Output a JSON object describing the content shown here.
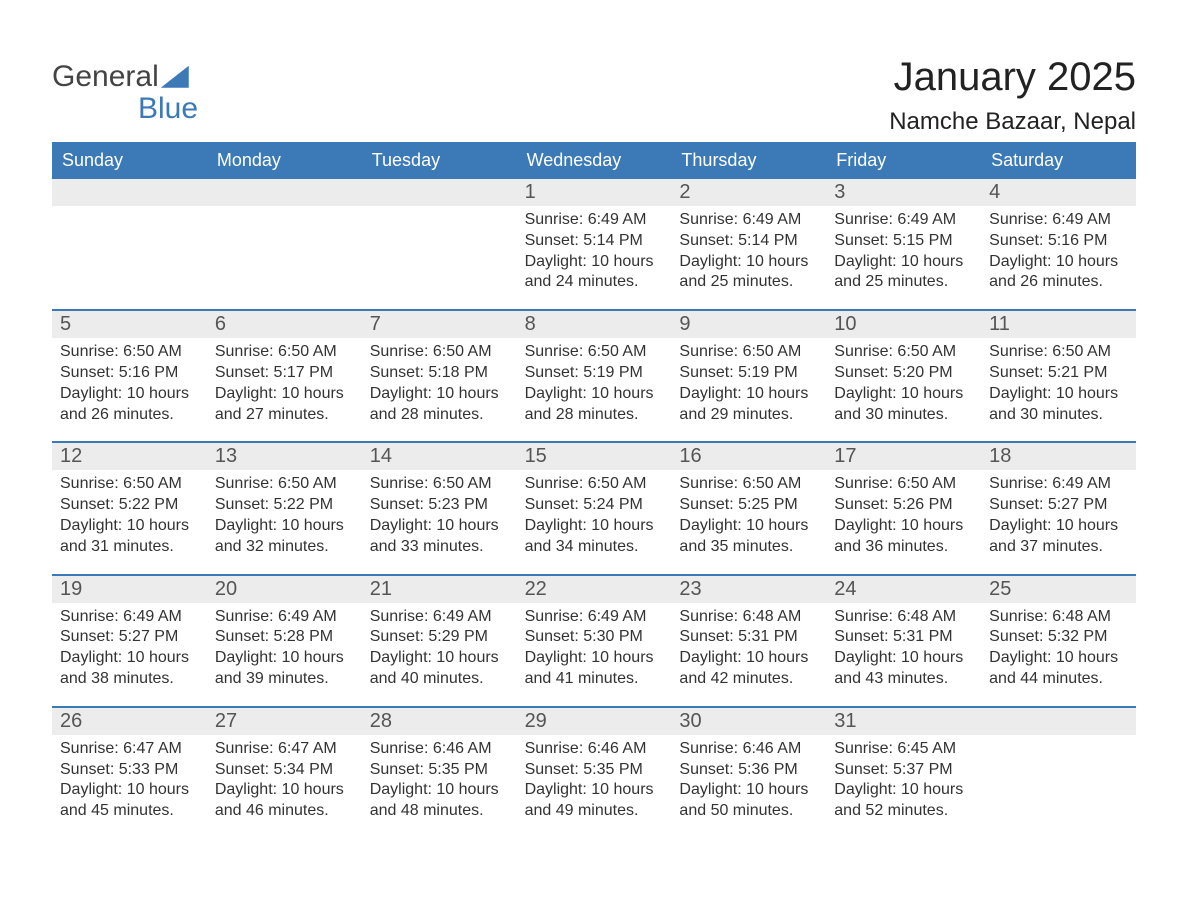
{
  "logo": {
    "text1": "General",
    "text2": "Blue",
    "color_text1": "#444444",
    "color_text2": "#3b79b7",
    "shape_color": "#3b79b7"
  },
  "month_title": "January 2025",
  "location": "Namche Bazaar, Nepal",
  "header_bg": "#3b79b7",
  "header_fg": "#ffffff",
  "daynum_bg": "#ececec",
  "daynum_fg": "#555555",
  "border_color": "#3b79b7",
  "body_fg": "#333333",
  "page_bg": "#ffffff",
  "day_names": [
    "Sunday",
    "Monday",
    "Tuesday",
    "Wednesday",
    "Thursday",
    "Friday",
    "Saturday"
  ],
  "weeks": [
    [
      {
        "day": "",
        "empty": true
      },
      {
        "day": "",
        "empty": true
      },
      {
        "day": "",
        "empty": true
      },
      {
        "day": "1",
        "sunrise": "Sunrise: 6:49 AM",
        "sunset": "Sunset: 5:14 PM",
        "daylight1": "Daylight: 10 hours",
        "daylight2": "and 24 minutes."
      },
      {
        "day": "2",
        "sunrise": "Sunrise: 6:49 AM",
        "sunset": "Sunset: 5:14 PM",
        "daylight1": "Daylight: 10 hours",
        "daylight2": "and 25 minutes."
      },
      {
        "day": "3",
        "sunrise": "Sunrise: 6:49 AM",
        "sunset": "Sunset: 5:15 PM",
        "daylight1": "Daylight: 10 hours",
        "daylight2": "and 25 minutes."
      },
      {
        "day": "4",
        "sunrise": "Sunrise: 6:49 AM",
        "sunset": "Sunset: 5:16 PM",
        "daylight1": "Daylight: 10 hours",
        "daylight2": "and 26 minutes."
      }
    ],
    [
      {
        "day": "5",
        "sunrise": "Sunrise: 6:50 AM",
        "sunset": "Sunset: 5:16 PM",
        "daylight1": "Daylight: 10 hours",
        "daylight2": "and 26 minutes."
      },
      {
        "day": "6",
        "sunrise": "Sunrise: 6:50 AM",
        "sunset": "Sunset: 5:17 PM",
        "daylight1": "Daylight: 10 hours",
        "daylight2": "and 27 minutes."
      },
      {
        "day": "7",
        "sunrise": "Sunrise: 6:50 AM",
        "sunset": "Sunset: 5:18 PM",
        "daylight1": "Daylight: 10 hours",
        "daylight2": "and 28 minutes."
      },
      {
        "day": "8",
        "sunrise": "Sunrise: 6:50 AM",
        "sunset": "Sunset: 5:19 PM",
        "daylight1": "Daylight: 10 hours",
        "daylight2": "and 28 minutes."
      },
      {
        "day": "9",
        "sunrise": "Sunrise: 6:50 AM",
        "sunset": "Sunset: 5:19 PM",
        "daylight1": "Daylight: 10 hours",
        "daylight2": "and 29 minutes."
      },
      {
        "day": "10",
        "sunrise": "Sunrise: 6:50 AM",
        "sunset": "Sunset: 5:20 PM",
        "daylight1": "Daylight: 10 hours",
        "daylight2": "and 30 minutes."
      },
      {
        "day": "11",
        "sunrise": "Sunrise: 6:50 AM",
        "sunset": "Sunset: 5:21 PM",
        "daylight1": "Daylight: 10 hours",
        "daylight2": "and 30 minutes."
      }
    ],
    [
      {
        "day": "12",
        "sunrise": "Sunrise: 6:50 AM",
        "sunset": "Sunset: 5:22 PM",
        "daylight1": "Daylight: 10 hours",
        "daylight2": "and 31 minutes."
      },
      {
        "day": "13",
        "sunrise": "Sunrise: 6:50 AM",
        "sunset": "Sunset: 5:22 PM",
        "daylight1": "Daylight: 10 hours",
        "daylight2": "and 32 minutes."
      },
      {
        "day": "14",
        "sunrise": "Sunrise: 6:50 AM",
        "sunset": "Sunset: 5:23 PM",
        "daylight1": "Daylight: 10 hours",
        "daylight2": "and 33 minutes."
      },
      {
        "day": "15",
        "sunrise": "Sunrise: 6:50 AM",
        "sunset": "Sunset: 5:24 PM",
        "daylight1": "Daylight: 10 hours",
        "daylight2": "and 34 minutes."
      },
      {
        "day": "16",
        "sunrise": "Sunrise: 6:50 AM",
        "sunset": "Sunset: 5:25 PM",
        "daylight1": "Daylight: 10 hours",
        "daylight2": "and 35 minutes."
      },
      {
        "day": "17",
        "sunrise": "Sunrise: 6:50 AM",
        "sunset": "Sunset: 5:26 PM",
        "daylight1": "Daylight: 10 hours",
        "daylight2": "and 36 minutes."
      },
      {
        "day": "18",
        "sunrise": "Sunrise: 6:49 AM",
        "sunset": "Sunset: 5:27 PM",
        "daylight1": "Daylight: 10 hours",
        "daylight2": "and 37 minutes."
      }
    ],
    [
      {
        "day": "19",
        "sunrise": "Sunrise: 6:49 AM",
        "sunset": "Sunset: 5:27 PM",
        "daylight1": "Daylight: 10 hours",
        "daylight2": "and 38 minutes."
      },
      {
        "day": "20",
        "sunrise": "Sunrise: 6:49 AM",
        "sunset": "Sunset: 5:28 PM",
        "daylight1": "Daylight: 10 hours",
        "daylight2": "and 39 minutes."
      },
      {
        "day": "21",
        "sunrise": "Sunrise: 6:49 AM",
        "sunset": "Sunset: 5:29 PM",
        "daylight1": "Daylight: 10 hours",
        "daylight2": "and 40 minutes."
      },
      {
        "day": "22",
        "sunrise": "Sunrise: 6:49 AM",
        "sunset": "Sunset: 5:30 PM",
        "daylight1": "Daylight: 10 hours",
        "daylight2": "and 41 minutes."
      },
      {
        "day": "23",
        "sunrise": "Sunrise: 6:48 AM",
        "sunset": "Sunset: 5:31 PM",
        "daylight1": "Daylight: 10 hours",
        "daylight2": "and 42 minutes."
      },
      {
        "day": "24",
        "sunrise": "Sunrise: 6:48 AM",
        "sunset": "Sunset: 5:31 PM",
        "daylight1": "Daylight: 10 hours",
        "daylight2": "and 43 minutes."
      },
      {
        "day": "25",
        "sunrise": "Sunrise: 6:48 AM",
        "sunset": "Sunset: 5:32 PM",
        "daylight1": "Daylight: 10 hours",
        "daylight2": "and 44 minutes."
      }
    ],
    [
      {
        "day": "26",
        "sunrise": "Sunrise: 6:47 AM",
        "sunset": "Sunset: 5:33 PM",
        "daylight1": "Daylight: 10 hours",
        "daylight2": "and 45 minutes."
      },
      {
        "day": "27",
        "sunrise": "Sunrise: 6:47 AM",
        "sunset": "Sunset: 5:34 PM",
        "daylight1": "Daylight: 10 hours",
        "daylight2": "and 46 minutes."
      },
      {
        "day": "28",
        "sunrise": "Sunrise: 6:46 AM",
        "sunset": "Sunset: 5:35 PM",
        "daylight1": "Daylight: 10 hours",
        "daylight2": "and 48 minutes."
      },
      {
        "day": "29",
        "sunrise": "Sunrise: 6:46 AM",
        "sunset": "Sunset: 5:35 PM",
        "daylight1": "Daylight: 10 hours",
        "daylight2": "and 49 minutes."
      },
      {
        "day": "30",
        "sunrise": "Sunrise: 6:46 AM",
        "sunset": "Sunset: 5:36 PM",
        "daylight1": "Daylight: 10 hours",
        "daylight2": "and 50 minutes."
      },
      {
        "day": "31",
        "sunrise": "Sunrise: 6:45 AM",
        "sunset": "Sunset: 5:37 PM",
        "daylight1": "Daylight: 10 hours",
        "daylight2": "and 52 minutes."
      },
      {
        "day": "",
        "empty": true
      }
    ]
  ]
}
